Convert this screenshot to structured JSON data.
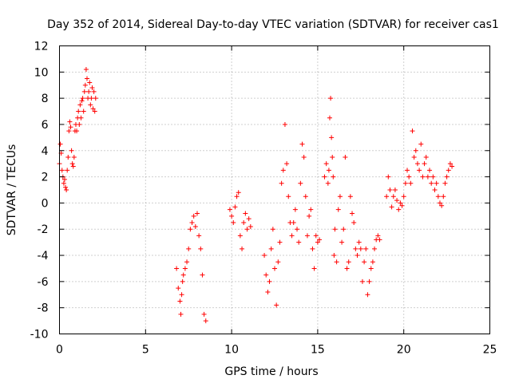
{
  "chart_data": {
    "type": "scatter",
    "title": "Day 352 of 2014, Sidereal Day-to-day VTEC variation (SDTVAR) for receiver cas1",
    "xlabel": "GPS time / hours",
    "ylabel": "SDTVAR / TECUs",
    "xlim": [
      0,
      25
    ],
    "ylim": [
      -10,
      12
    ],
    "x_ticks": [
      0,
      5,
      10,
      15,
      20,
      25
    ],
    "y_ticks": [
      -10,
      -8,
      -6,
      -4,
      -2,
      0,
      2,
      4,
      6,
      8,
      10,
      12
    ],
    "x_tick_labels": [
      "0",
      "5",
      "10",
      "15",
      "20",
      "25"
    ],
    "y_tick_labels": [
      "-10",
      "-8",
      "-6",
      "-4",
      "-2",
      "0",
      "2",
      "4",
      "6",
      "8",
      "10",
      "12"
    ],
    "grid": true,
    "marker": "+",
    "color": "#ff0000",
    "segments": [
      {
        "x": [
          0.0,
          0.05,
          0.1,
          0.15,
          0.2,
          0.25,
          0.3,
          0.35,
          0.4,
          0.45,
          0.5,
          0.55,
          0.6,
          0.65,
          0.7,
          0.75,
          0.8,
          0.85,
          0.9,
          0.95,
          1.0,
          1.05,
          1.1,
          1.15,
          1.2,
          1.25,
          1.3,
          1.35,
          1.4,
          1.45,
          1.5,
          1.55,
          1.6,
          1.65,
          1.7,
          1.75,
          1.8,
          1.85,
          1.9,
          1.95,
          2.0,
          2.05,
          2.1
        ],
        "y": [
          3.0,
          4.5,
          3.8,
          2.5,
          2.0,
          1.5,
          1.8,
          1.2,
          1.0,
          2.5,
          3.5,
          5.5,
          6.2,
          5.8,
          4.0,
          3.0,
          2.8,
          3.5,
          5.5,
          6.0,
          5.5,
          6.5,
          7.0,
          6.0,
          7.5,
          6.5,
          7.8,
          8.0,
          7.0,
          8.5,
          9.0,
          10.2,
          9.5,
          8.0,
          8.5,
          9.2,
          7.5,
          8.0,
          8.8,
          7.2,
          8.5,
          7.0,
          8.0
        ]
      },
      {
        "x": [
          6.8,
          6.9,
          7.0,
          7.05,
          7.1,
          7.15,
          7.2,
          7.3,
          7.4,
          7.5,
          7.6,
          7.7,
          7.8,
          7.9,
          8.0,
          8.1,
          8.2,
          8.3,
          8.4,
          8.5
        ],
        "y": [
          -5.0,
          -6.5,
          -7.5,
          -8.5,
          -7.0,
          -6.0,
          -5.5,
          -5.0,
          -4.5,
          -3.5,
          -2.0,
          -1.5,
          -1.0,
          -1.8,
          -0.8,
          -2.5,
          -3.5,
          -5.5,
          -8.5,
          -9.0
        ]
      },
      {
        "x": [
          9.9,
          10.0,
          10.1,
          10.2,
          10.3,
          10.4,
          10.5,
          10.6,
          10.7,
          10.8,
          10.9,
          11.0,
          11.1
        ],
        "y": [
          -0.5,
          -1.0,
          -1.5,
          -0.3,
          0.5,
          0.8,
          -2.5,
          -3.5,
          -1.5,
          -0.8,
          -2.0,
          -1.2,
          -1.8
        ]
      },
      {
        "x": [
          11.9,
          12.0,
          12.1,
          12.2,
          12.3,
          12.4,
          12.5,
          12.6,
          12.7,
          12.8,
          12.9,
          13.0,
          13.1,
          13.2,
          13.3,
          13.4,
          13.5,
          13.6,
          13.7,
          13.8,
          13.9,
          14.0,
          14.1,
          14.2,
          14.3,
          14.4,
          14.5,
          14.6,
          14.7,
          14.8,
          14.9,
          15.0,
          15.1
        ],
        "y": [
          -4.0,
          -5.5,
          -6.8,
          -6.0,
          -3.5,
          -2.0,
          -5.0,
          -7.8,
          -4.5,
          -3.0,
          1.5,
          2.5,
          6.0,
          3.0,
          0.5,
          -1.5,
          -2.5,
          -1.5,
          -0.5,
          -2.0,
          -3.0,
          1.5,
          4.5,
          3.5,
          0.5,
          -2.5,
          -1.0,
          -0.5,
          -3.5,
          -5.0,
          -2.5,
          -3.0,
          -2.8
        ]
      },
      {
        "x": [
          15.4,
          15.5,
          15.6,
          15.65,
          15.7,
          15.75,
          15.8,
          15.85,
          15.9,
          15.95,
          16.0,
          16.1,
          16.2,
          16.3,
          16.4,
          16.5,
          16.6,
          16.7,
          16.8,
          16.9,
          17.0,
          17.1,
          17.2,
          17.3,
          17.4,
          17.5,
          17.6,
          17.7,
          17.8,
          17.9,
          18.0,
          18.1,
          18.2,
          18.3,
          18.4,
          18.5,
          18.6
        ],
        "y": [
          2.0,
          3.0,
          1.5,
          2.5,
          6.5,
          8.0,
          5.0,
          3.5,
          2.0,
          -4.0,
          -2.0,
          -4.5,
          -0.5,
          0.5,
          -3.0,
          -2.0,
          3.5,
          -5.0,
          -4.5,
          0.5,
          -0.8,
          -1.5,
          -3.5,
          -4.0,
          -3.0,
          -3.5,
          -6.0,
          -4.5,
          -3.5,
          -7.0,
          -6.0,
          -5.0,
          -4.5,
          -3.5,
          -2.8,
          -2.5,
          -2.8
        ]
      },
      {
        "x": [
          19.0,
          19.1,
          19.2,
          19.3,
          19.4,
          19.5,
          19.6,
          19.7,
          19.8,
          19.9,
          20.0,
          20.1,
          20.2,
          20.3,
          20.4,
          20.5,
          20.6,
          20.7,
          20.8,
          20.9,
          21.0,
          21.1,
          21.2,
          21.3,
          21.4,
          21.5,
          21.6,
          21.7,
          21.8,
          21.9,
          22.0,
          22.1,
          22.2,
          22.3,
          22.4,
          22.5,
          22.6,
          22.7,
          22.8
        ],
        "y": [
          0.5,
          2.0,
          1.0,
          -0.3,
          0.5,
          1.0,
          0.2,
          -0.5,
          0.0,
          -0.2,
          0.5,
          1.5,
          2.5,
          2.0,
          1.5,
          5.5,
          3.5,
          4.0,
          3.0,
          2.5,
          4.5,
          2.0,
          3.0,
          3.5,
          2.0,
          2.5,
          1.5,
          2.0,
          1.0,
          1.5,
          0.5,
          0.0,
          -0.2,
          0.5,
          1.5,
          2.0,
          2.5,
          3.0,
          2.8
        ]
      }
    ]
  }
}
